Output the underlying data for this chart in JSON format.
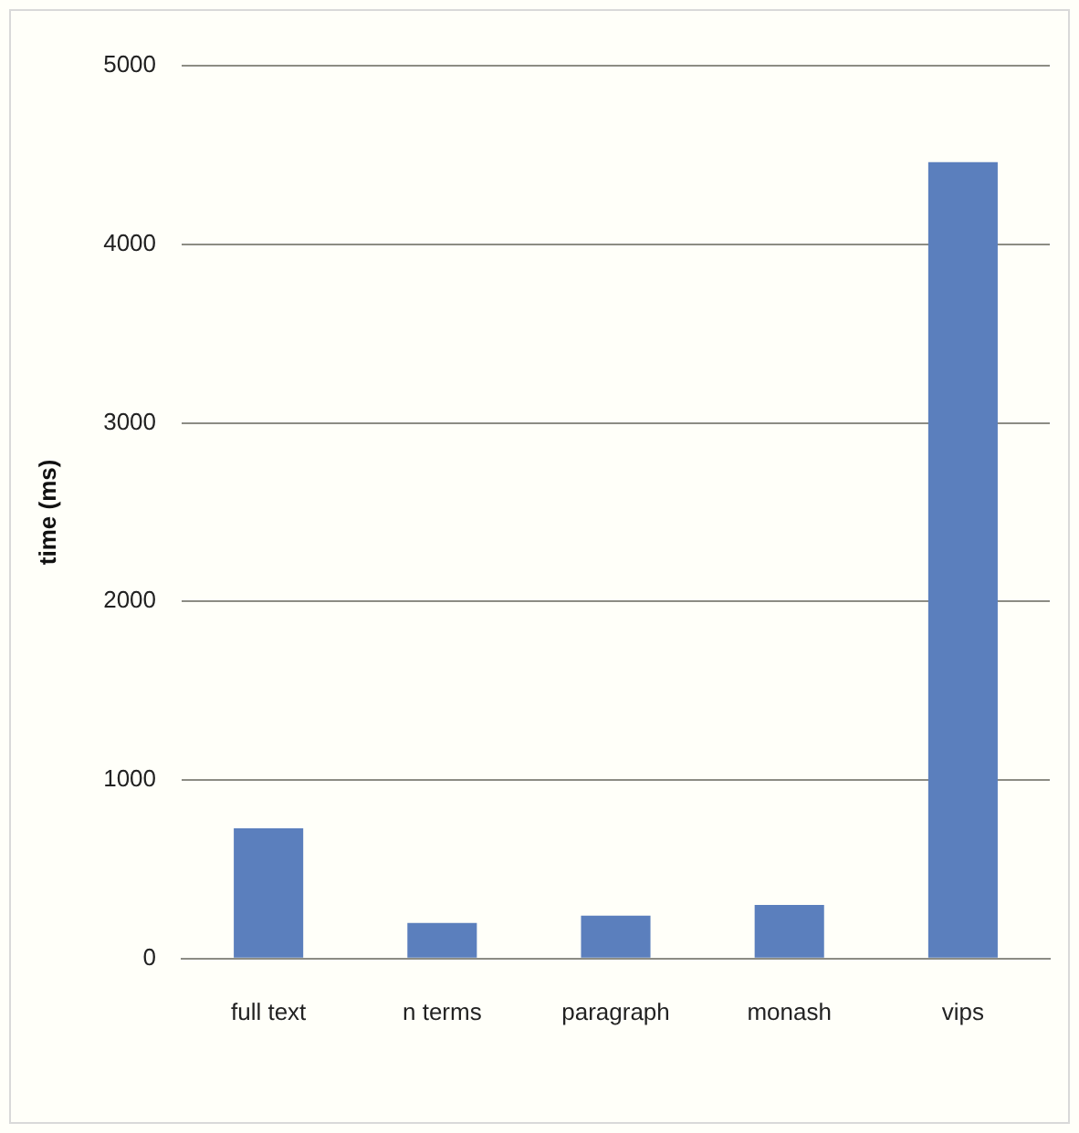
{
  "chart_data": {
    "type": "bar",
    "ylabel": "time (ms)",
    "categories": [
      "full text",
      "n terms",
      "paragraph",
      "monash",
      "vips"
    ],
    "values": [
      730,
      200,
      240,
      300,
      4460
    ],
    "color": "#5b7fbd",
    "ylim": [
      0,
      5000
    ],
    "yticks": [
      0,
      1000,
      2000,
      3000,
      4000,
      5000
    ],
    "grid": "y",
    "legend": false
  }
}
